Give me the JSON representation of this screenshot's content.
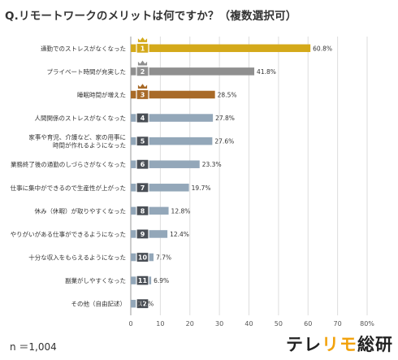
{
  "title": "Q.リモートワークのメリットは何ですか？（複数選択可）",
  "sample_size": "n ＝1,004",
  "brand": {
    "part1": "テレ",
    "part2": "リモ",
    "part3": "総研"
  },
  "colors": {
    "gold": "#d4a91a",
    "silver": "#8f8f8f",
    "bronze": "#a86a28",
    "other": "#93a7b9",
    "badge_dark": "#4a4f56",
    "grid": "#dddddd",
    "axis": "#999999"
  },
  "chart_data": {
    "type": "bar",
    "orientation": "horizontal",
    "categories": [
      "通勤でのストレスがなくなった",
      "プライベート時間が充実した",
      "睡眠時間が増えた",
      "人間関係のストレスがなくなった",
      "家事や育児、介護など、家の用事に\n時間が作れるようになった",
      "業務終了後の通勤のしづらさがなくなった",
      "仕事に集中ができるので生産性が上がった",
      "休み（休暇）が取りやすくなった",
      "やりがいがある仕事ができるようになった",
      "十分な収入をもらえるようになった",
      "副業がしやすくなった",
      "その他（自由記述）"
    ],
    "ranks": [
      "1",
      "2",
      "3",
      "4",
      "5",
      "6",
      "7",
      "8",
      "9",
      "10",
      "11",
      "12"
    ],
    "values": [
      60.8,
      41.8,
      28.5,
      27.8,
      27.6,
      23.3,
      19.7,
      12.8,
      12.4,
      7.7,
      6.9,
      1.7
    ],
    "value_labels": [
      "60.8%",
      "41.8%",
      "28.5%",
      "27.8%",
      "27.6%",
      "23.3%",
      "19.7%",
      "12.8%",
      "12.4%",
      "7.7%",
      "6.9%",
      "1.7%"
    ],
    "xlim": [
      0,
      80
    ],
    "xticks": [
      "0",
      "10",
      "20",
      "30",
      "40",
      "50",
      "60",
      "70",
      "80%"
    ],
    "grid": true
  }
}
